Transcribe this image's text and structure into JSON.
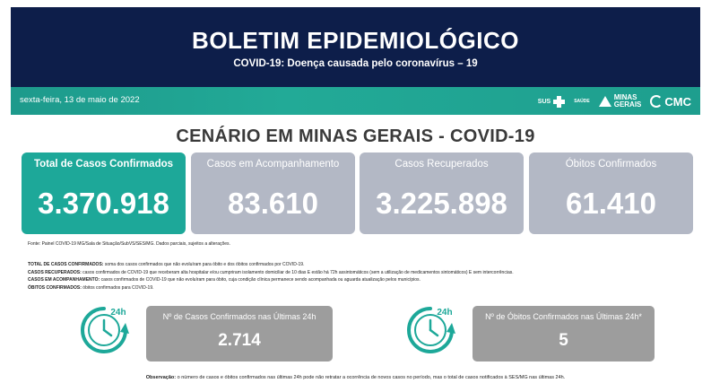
{
  "header": {
    "title": "BOLETIM EPIDEMIOLÓGICO",
    "subtitle": "COVID-19: Doença causada pelo coronavírus – 19",
    "colors": {
      "navy": "#0d1e4a",
      "teal": "#1da899",
      "gray_card": "#b3b8c5",
      "gray_small": "#9d9d9d"
    }
  },
  "bar": {
    "date": "sexta-feira, 13 de maio de 2022",
    "logos": {
      "sus": "SUS",
      "saude": "SAÚDE",
      "mg_line1": "MINAS",
      "mg_line2": "GERAIS",
      "cmc": "CMC"
    }
  },
  "scenario": {
    "title": "CENÁRIO EM MINAS GERAIS - COVID-19"
  },
  "cards": [
    {
      "label": "Total de Casos Confirmados",
      "value": "3.370.918"
    },
    {
      "label": "Casos em Acompanhamento",
      "value": "83.610"
    },
    {
      "label": "Casos Recuperados",
      "value": "3.225.898"
    },
    {
      "label": "Óbitos Confirmados",
      "value": "61.410"
    }
  ],
  "source": "Fonte: Painel COVID-19 MG/Sala de Situação/SubVS/SES/MG. Dados parciais, sujeitos a alterações.",
  "definitions": [
    {
      "term": "TOTAL DE CASOS CONFIRMADOS:",
      "text": " soma dos casos confirmados que não evoluíram para óbito e dos óbitos confirmados por COVID-19."
    },
    {
      "term": "CASOS RECUPERADOS:",
      "text": " casos confirmados de COVID-19 que receberam alta hospitalar e/ou cumpriram isolamento domiciliar de 10 dias E estão há 72h assintomáticos (sem a utilização de medicamentos sintomáticos) E sem intercorrências."
    },
    {
      "term": "CASOS EM ACOMPANHAMENTO:",
      "text": " casos confirmados de COVID-19 que não evoluíram para óbito, cuja condição clínica permanece sendo acompanhada ou aguarda atualização pelos municípios."
    },
    {
      "term": "ÓBITOS CONFIRMADOS:",
      "text": " óbitos confirmados para COVID-19."
    }
  ],
  "last24": {
    "clock_label": "24h",
    "cases": {
      "label": "Nº de Casos Confirmados nas Últimas 24h",
      "value": "2.714"
    },
    "deaths": {
      "label": "Nº de Óbitos Confirmados nas Últimas 24h*",
      "value": "5"
    }
  },
  "note": {
    "term": "Observação:",
    "text": " o número de casos e óbitos confirmados nas últimas 24h pode não retratar a ocorrência de novos casos no período, mas o total de casos notificados à SES/MG nas últimas 24h."
  }
}
